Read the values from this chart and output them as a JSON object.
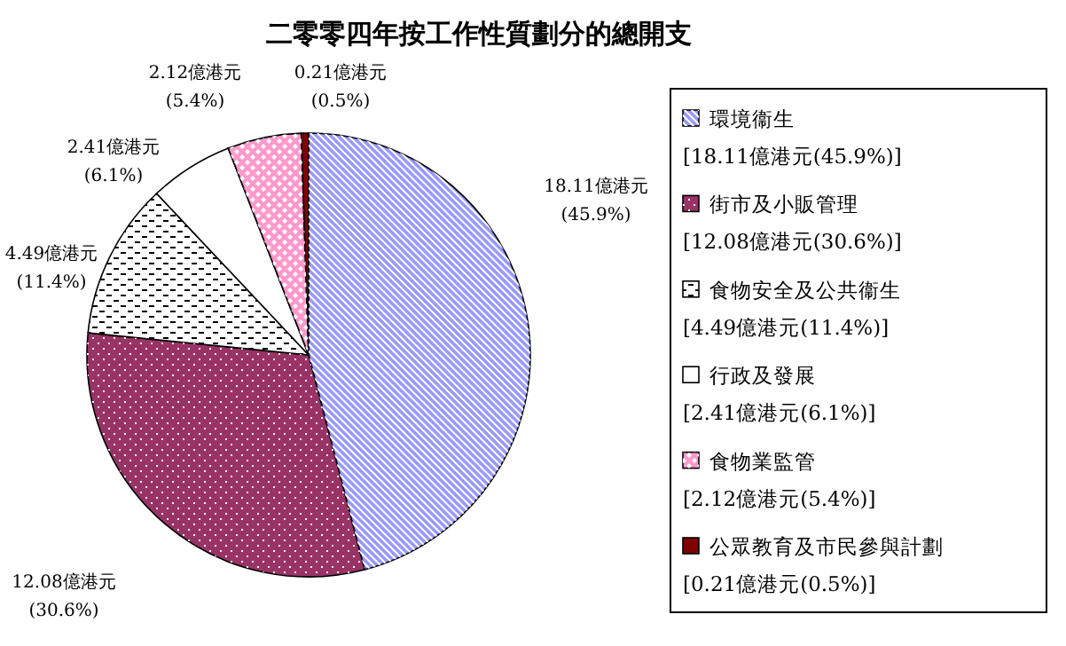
{
  "chart_data": {
    "type": "pie",
    "title": "二零零四年按工作性質劃分的總開支",
    "categories": [
      "環境衞生",
      "街市及小販管理",
      "食物安全及公共衞生",
      "行政及發展",
      "食物業監管",
      "公眾教育及市民參與計劃"
    ],
    "values": [
      18.11,
      12.08,
      4.49,
      2.41,
      2.12,
      0.21
    ],
    "colors": [
      "#9999ff",
      "#993366",
      "#ffffff",
      "#ffffff",
      "#ff99cc",
      "#800000"
    ],
    "value_labels": [
      "18.11億港元(45.9%)",
      "12.08億港元(30.6%)",
      "4.49億港元(11.4%)",
      "2.41億港元(6.1%)",
      "2.12億港元(5.4%)",
      "0.21億港元(0.5%)"
    ],
    "annotations": [
      "[18.11億港元(45.9%)]",
      "[12.08億港元(30.6%)]",
      "[4.49億港元(11.4%)]",
      "[2.41億港元(6.1%)]",
      "[2.12億港元(5.4%)]",
      "[0.21億港元(0.5%)]"
    ],
    "legend": "right"
  }
}
